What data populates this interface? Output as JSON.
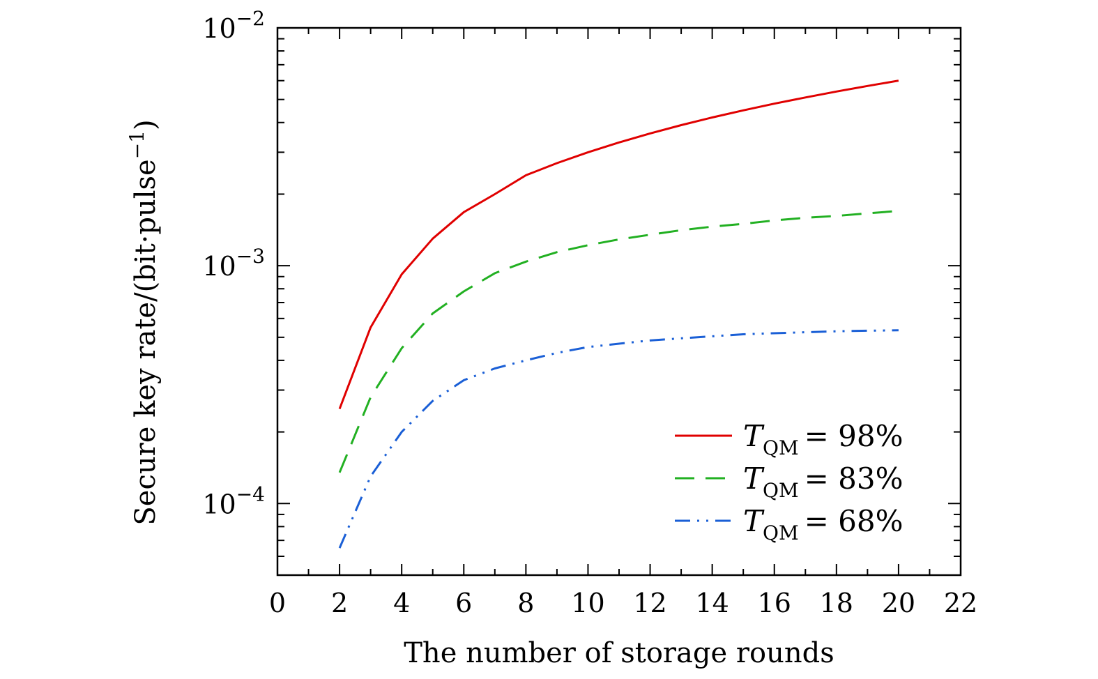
{
  "chart_data": {
    "type": "line",
    "xlabel": "The number of storage rounds",
    "ylabel": "Secure key rate/(bit·pulse",
    "ylabel_sup": "−1",
    "ylabel_tail": ")",
    "xlim": [
      0,
      22
    ],
    "ylim": [
      5e-05,
      0.01
    ],
    "yscale": "log",
    "x_ticks": [
      "0",
      "2",
      "4",
      "6",
      "8",
      "10",
      "12",
      "14",
      "16",
      "18",
      "20",
      "22"
    ],
    "y_ticks": [
      {
        "base": "10",
        "exp": "−2",
        "value": 0.01
      },
      {
        "base": "10",
        "exp": "−3",
        "value": 0.001
      },
      {
        "base": "10",
        "exp": "−4",
        "value": 0.0001
      }
    ],
    "grid": false,
    "legend_position": "bottom-right",
    "x": [
      2,
      3,
      4,
      5,
      6,
      7,
      8,
      9,
      10,
      11,
      12,
      13,
      14,
      15,
      16,
      17,
      18,
      19,
      20
    ],
    "series": [
      {
        "symbol": "T",
        "subscript": "QM",
        "relation": "= 98%",
        "color": "#e00000",
        "dash": "solid",
        "values": [
          0.00025,
          0.00055,
          0.00092,
          0.0013,
          0.00168,
          0.002,
          0.0024,
          0.0027,
          0.003,
          0.0033,
          0.0036,
          0.0039,
          0.0042,
          0.0045,
          0.0048,
          0.0051,
          0.0054,
          0.0057,
          0.006
        ]
      },
      {
        "symbol": "T",
        "subscript": "QM",
        "relation": "= 83%",
        "color": "#22b022",
        "dash": "dashed",
        "values": [
          0.000135,
          0.00028,
          0.00045,
          0.00063,
          0.00078,
          0.00093,
          0.00104,
          0.00114,
          0.00122,
          0.00129,
          0.00135,
          0.00141,
          0.00146,
          0.0015,
          0.00155,
          0.00159,
          0.00162,
          0.00166,
          0.0017
        ]
      },
      {
        "symbol": "T",
        "subscript": "QM",
        "relation": "= 68%",
        "color": "#1a5fd6",
        "dash": "dash-dot-dot",
        "values": [
          6.5e-05,
          0.00013,
          0.0002,
          0.00027,
          0.00033,
          0.00037,
          0.0004,
          0.00043,
          0.000455,
          0.00047,
          0.000485,
          0.000495,
          0.000505,
          0.000515,
          0.00052,
          0.000525,
          0.00053,
          0.000533,
          0.000535
        ]
      }
    ]
  }
}
